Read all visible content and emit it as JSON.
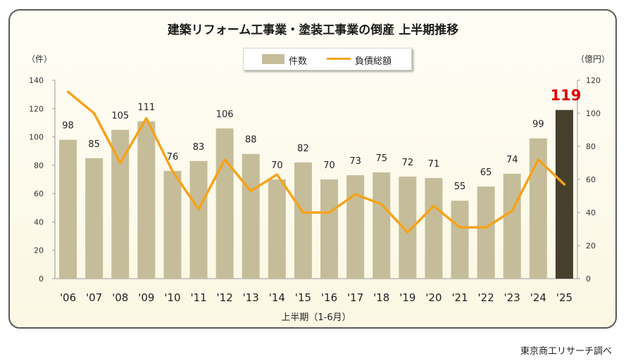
{
  "chart_data": {
    "type": "bar+line",
    "title": "建築リフォーム工事業・塗装工事業の倒産 上半期推移",
    "categories": [
      "'06",
      "'07",
      "'08",
      "'09",
      "'10",
      "'11",
      "'12",
      "'13",
      "'14",
      "'15",
      "'16",
      "'17",
      "'18",
      "'19",
      "'20",
      "'21",
      "'22",
      "'23",
      "'24",
      "'25"
    ],
    "series": [
      {
        "name": "件数",
        "kind": "bar",
        "axis": "left",
        "values": [
          98,
          85,
          105,
          111,
          76,
          83,
          106,
          88,
          70,
          82,
          70,
          73,
          75,
          72,
          71,
          55,
          65,
          74,
          99,
          119
        ],
        "labels": [
          "98",
          "85",
          "105",
          "111",
          "76",
          "83",
          "106",
          "88",
          "70",
          "82",
          "70",
          "73",
          "75",
          "72",
          "71",
          "55",
          "65",
          "74",
          "99",
          "119"
        ]
      },
      {
        "name": "負債総額",
        "kind": "line",
        "axis": "right",
        "values": [
          113,
          100,
          70,
          97,
          65,
          42,
          72,
          53,
          63,
          40,
          40,
          51,
          45,
          28,
          44,
          31,
          31,
          41,
          72,
          57
        ]
      }
    ],
    "left_axis": {
      "unit": "（件）",
      "min": 0,
      "max": 140,
      "ticks": [
        "0",
        "20",
        "40",
        "60",
        "80",
        "100",
        "120",
        "140"
      ]
    },
    "right_axis": {
      "unit": "（億円）",
      "min": 0,
      "max": 120,
      "ticks": [
        "0",
        "20",
        "40",
        "60",
        "80",
        "100",
        "120"
      ]
    },
    "xlabel": "上半期（1-6月）",
    "colors": {
      "bar": "#c5bd9a",
      "highlight_bar": "#463f2c",
      "line": "#f5a31a",
      "highlight_label": "#e00000",
      "label": "#222222"
    },
    "source": "東京商工リサーチ調べ"
  }
}
